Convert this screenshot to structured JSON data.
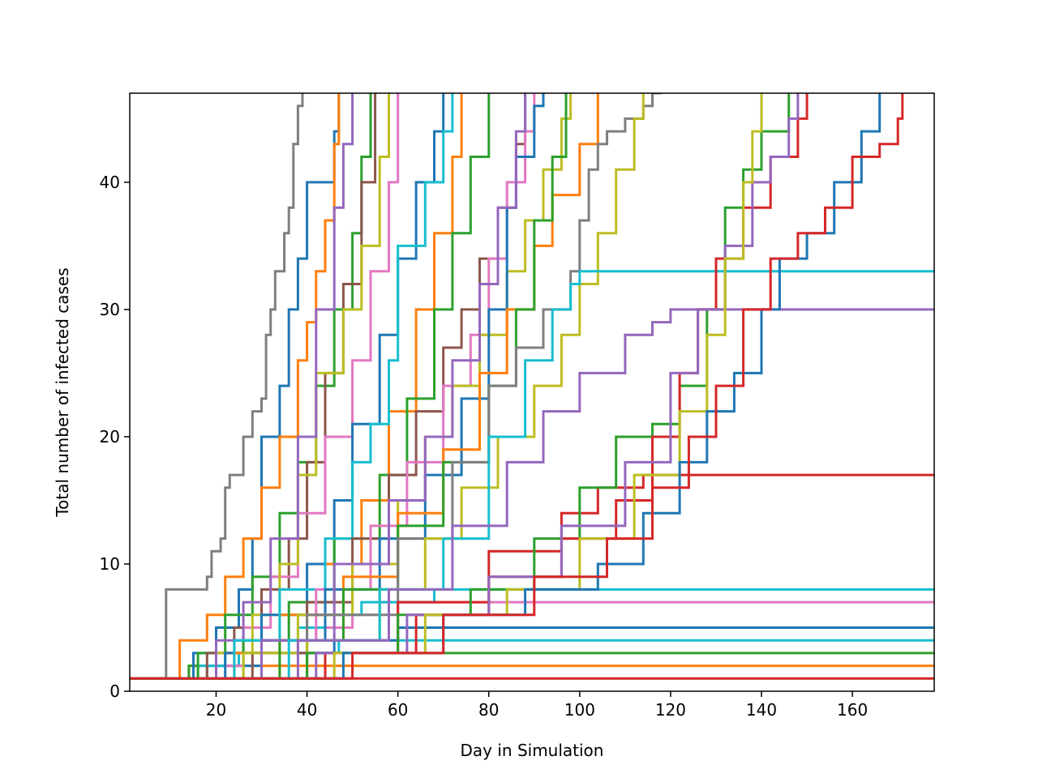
{
  "chart_data": {
    "type": "line",
    "title": "",
    "xlabel": "Day in Simulation",
    "ylabel": "Total number of infected cases",
    "xlim": [
      1,
      178
    ],
    "ylim": [
      0,
      47
    ],
    "xticks": [
      20,
      40,
      60,
      80,
      100,
      120,
      140,
      160
    ],
    "yticks": [
      0,
      10,
      20,
      30,
      40
    ],
    "grid": false,
    "legend": "none",
    "palette": [
      "#1f77b4",
      "#ff7f0e",
      "#2ca02c",
      "#d62728",
      "#9467bd",
      "#8c564b",
      "#e377c2",
      "#7f7f7f",
      "#bcbd22",
      "#17becf"
    ],
    "series": [
      {
        "color": "#d62728",
        "x": [
          1,
          178
        ],
        "y": [
          1,
          1
        ]
      },
      {
        "color": "#ff7f0e",
        "x": [
          1,
          12,
          14,
          178
        ],
        "y": [
          1,
          1,
          2,
          2
        ]
      },
      {
        "color": "#2ca02c",
        "x": [
          1,
          10,
          14,
          20,
          178
        ],
        "y": [
          1,
          1,
          2,
          3,
          3
        ]
      },
      {
        "color": "#17becf",
        "x": [
          1,
          12,
          18,
          25,
          47,
          178
        ],
        "y": [
          1,
          1,
          2,
          3,
          4,
          4
        ]
      },
      {
        "color": "#1f77b4",
        "x": [
          1,
          14,
          20,
          30,
          46,
          60,
          178
        ],
        "y": [
          1,
          1,
          2,
          3,
          4,
          5,
          5
        ]
      },
      {
        "color": "#e377c2",
        "x": [
          1,
          12,
          18,
          26,
          34,
          42,
          50,
          56,
          178
        ],
        "y": [
          1,
          1,
          2,
          3,
          4,
          5,
          6,
          7,
          7
        ]
      },
      {
        "color": "#17becf",
        "x": [
          1,
          10,
          16,
          22,
          30,
          38,
          44,
          52,
          60,
          68,
          178
        ],
        "y": [
          1,
          1,
          2,
          3,
          4,
          5,
          6,
          7,
          7,
          8,
          8
        ]
      },
      {
        "color": "#7f7f7f",
        "x": [
          1,
          8,
          9,
          16,
          18,
          19,
          21,
          22,
          23,
          24,
          26,
          28,
          30,
          31,
          32,
          33,
          34,
          35,
          36,
          37,
          38,
          39
        ],
        "y": [
          1,
          1,
          8,
          8,
          9,
          11,
          12,
          16,
          17,
          17,
          20,
          22,
          23,
          28,
          30,
          33,
          33,
          36,
          38,
          43,
          46,
          47
        ]
      },
      {
        "color": "#1f77b4",
        "x": [
          1,
          10,
          15,
          20,
          25,
          28,
          30,
          32,
          34,
          36,
          38,
          40,
          42,
          44,
          46,
          47
        ],
        "y": [
          1,
          1,
          3,
          5,
          8,
          12,
          20,
          20,
          24,
          30,
          34,
          40,
          40,
          40,
          44,
          47
        ]
      },
      {
        "color": "#ff7f0e",
        "x": [
          1,
          8,
          12,
          18,
          22,
          26,
          30,
          34,
          38,
          40,
          42,
          44,
          46,
          47
        ],
        "y": [
          1,
          1,
          4,
          6,
          9,
          12,
          16,
          20,
          26,
          29,
          33,
          37,
          43,
          47
        ]
      },
      {
        "color": "#2ca02c",
        "x": [
          1,
          10,
          16,
          22,
          28,
          34,
          38,
          42,
          46,
          50,
          52,
          54
        ],
        "y": [
          1,
          1,
          3,
          6,
          9,
          14,
          18,
          24,
          30,
          36,
          42,
          47
        ]
      },
      {
        "color": "#8c564b",
        "x": [
          1,
          12,
          18,
          24,
          30,
          36,
          40,
          44,
          48,
          52,
          55
        ],
        "y": [
          1,
          1,
          3,
          5,
          8,
          12,
          18,
          25,
          32,
          40,
          47
        ]
      },
      {
        "color": "#e377c2",
        "x": [
          1,
          14,
          20,
          26,
          32,
          38,
          44,
          50,
          54,
          58,
          60
        ],
        "y": [
          1,
          1,
          3,
          5,
          9,
          14,
          20,
          26,
          33,
          40,
          47
        ]
      },
      {
        "color": "#bcbd22",
        "x": [
          1,
          12,
          20,
          28,
          34,
          38,
          42,
          48,
          52,
          56,
          58
        ],
        "y": [
          1,
          1,
          3,
          6,
          10,
          17,
          25,
          30,
          35,
          42,
          47
        ]
      },
      {
        "color": "#9467bd",
        "x": [
          1,
          14,
          20,
          26,
          32,
          38,
          42,
          46,
          48,
          50
        ],
        "y": [
          1,
          1,
          4,
          7,
          12,
          20,
          30,
          38,
          43,
          47
        ]
      },
      {
        "color": "#1f77b4",
        "x": [
          1,
          12,
          22,
          30,
          40,
          46,
          50,
          56,
          60,
          64,
          68,
          70
        ],
        "y": [
          1,
          1,
          3,
          6,
          10,
          15,
          21,
          28,
          34,
          40,
          44,
          47
        ]
      },
      {
        "color": "#ff7f0e",
        "x": [
          1,
          12,
          24,
          34,
          44,
          52,
          58,
          64,
          68,
          72,
          74
        ],
        "y": [
          1,
          1,
          3,
          6,
          10,
          15,
          22,
          30,
          36,
          42,
          47
        ]
      },
      {
        "color": "#2ca02c",
        "x": [
          1,
          16,
          26,
          36,
          46,
          56,
          62,
          68,
          72,
          76,
          80
        ],
        "y": [
          1,
          1,
          4,
          7,
          12,
          17,
          23,
          30,
          36,
          42,
          47
        ]
      },
      {
        "color": "#17becf",
        "x": [
          1,
          14,
          24,
          34,
          44,
          50,
          54,
          58,
          60,
          64,
          66,
          70,
          72
        ],
        "y": [
          1,
          1,
          4,
          8,
          12,
          18,
          21,
          26,
          35,
          35,
          40,
          44,
          47
        ]
      },
      {
        "color": "#8c564b",
        "x": [
          1,
          16,
          28,
          40,
          50,
          58,
          64,
          70,
          74,
          78,
          82,
          86,
          88
        ],
        "y": [
          1,
          1,
          3,
          7,
          12,
          17,
          22,
          27,
          30,
          34,
          38,
          43,
          47
        ]
      },
      {
        "color": "#e377c2",
        "x": [
          1,
          18,
          30,
          42,
          54,
          62,
          70,
          76,
          80,
          84,
          88,
          90
        ],
        "y": [
          1,
          1,
          4,
          8,
          13,
          18,
          24,
          28,
          34,
          40,
          44,
          47
        ]
      },
      {
        "color": "#bcbd22",
        "x": [
          1,
          14,
          26,
          38,
          50,
          60,
          66,
          72,
          78,
          84,
          88,
          92,
          96,
          98
        ],
        "y": [
          1,
          1,
          3,
          6,
          10,
          15,
          20,
          24,
          28,
          33,
          37,
          41,
          45,
          47
        ]
      },
      {
        "color": "#1f77b4",
        "x": [
          1,
          18,
          30,
          44,
          56,
          66,
          74,
          80,
          84,
          86,
          90,
          92
        ],
        "y": [
          1,
          1,
          4,
          8,
          12,
          17,
          23,
          30,
          38,
          42,
          46,
          47
        ]
      },
      {
        "color": "#ff7f0e",
        "x": [
          1,
          20,
          34,
          48,
          60,
          70,
          78,
          84,
          90,
          94,
          100,
          104
        ],
        "y": [
          1,
          1,
          4,
          9,
          14,
          19,
          25,
          30,
          35,
          39,
          43,
          47
        ]
      },
      {
        "color": "#2ca02c",
        "x": [
          1,
          20,
          34,
          48,
          60,
          70,
          80,
          86,
          90,
          94,
          97
        ],
        "y": [
          1,
          1,
          4,
          8,
          13,
          18,
          24,
          30,
          37,
          42,
          47
        ]
      },
      {
        "color": "#9467bd",
        "x": [
          1,
          16,
          30,
          46,
          58,
          66,
          72,
          78,
          82,
          86,
          88
        ],
        "y": [
          1,
          1,
          4,
          10,
          15,
          20,
          26,
          32,
          38,
          44,
          47
        ]
      },
      {
        "color": "#7f7f7f",
        "x": [
          1,
          20,
          40,
          60,
          72,
          80,
          86,
          92,
          98,
          100,
          102,
          104,
          106,
          108,
          110,
          112,
          114,
          116,
          118
        ],
        "y": [
          1,
          1,
          6,
          12,
          18,
          24,
          27,
          30,
          33,
          37,
          41,
          43,
          44,
          44,
          45,
          45,
          46,
          47,
          47
        ]
      },
      {
        "color": "#bcbd22",
        "x": [
          1,
          22,
          40,
          56,
          66,
          74,
          82,
          90,
          96,
          100,
          104,
          108,
          112,
          114
        ],
        "y": [
          1,
          1,
          4,
          8,
          12,
          16,
          20,
          24,
          28,
          32,
          36,
          41,
          45,
          47
        ]
      },
      {
        "color": "#17becf",
        "x": [
          1,
          16,
          36,
          56,
          70,
          80,
          88,
          94,
          98,
          100,
          178
        ],
        "y": [
          1,
          1,
          4,
          8,
          12,
          20,
          26,
          30,
          32,
          33,
          33
        ]
      },
      {
        "color": "#9467bd",
        "x": [
          1,
          18,
          38,
          58,
          72,
          84,
          92,
          100,
          110,
          116,
          120,
          178
        ],
        "y": [
          1,
          1,
          4,
          8,
          13,
          18,
          22,
          25,
          28,
          29,
          30,
          30
        ]
      },
      {
        "color": "#d62728",
        "x": [
          1,
          20,
          40,
          60,
          80,
          96,
          104,
          110,
          114,
          116,
          178
        ],
        "y": [
          1,
          1,
          3,
          7,
          11,
          14,
          16,
          16,
          17,
          17,
          17
        ]
      },
      {
        "color": "#2ca02c",
        "x": [
          1,
          20,
          40,
          60,
          76,
          90,
          100,
          108,
          116,
          122,
          128,
          132,
          136,
          140,
          146
        ],
        "y": [
          1,
          1,
          3,
          6,
          8,
          12,
          16,
          20,
          21,
          24,
          30,
          38,
          41,
          44,
          47
        ]
      },
      {
        "color": "#d62728",
        "x": [
          1,
          24,
          44,
          64,
          80,
          96,
          108,
          116,
          122,
          126,
          130,
          136,
          142,
          148,
          150
        ],
        "y": [
          1,
          1,
          3,
          6,
          9,
          12,
          15,
          20,
          25,
          30,
          34,
          38,
          42,
          45,
          47
        ]
      },
      {
        "color": "#9467bd",
        "x": [
          1,
          22,
          42,
          62,
          80,
          96,
          110,
          120,
          126,
          132,
          138,
          142,
          146,
          148
        ],
        "y": [
          1,
          1,
          3,
          6,
          9,
          13,
          18,
          25,
          30,
          35,
          40,
          42,
          45,
          47
        ]
      },
      {
        "color": "#bcbd22",
        "x": [
          1,
          24,
          46,
          66,
          84,
          100,
          112,
          122,
          128,
          132,
          136,
          138,
          140
        ],
        "y": [
          1,
          1,
          3,
          6,
          8,
          12,
          17,
          22,
          28,
          34,
          40,
          44,
          47
        ]
      },
      {
        "color": "#1f77b4",
        "x": [
          1,
          26,
          48,
          70,
          88,
          104,
          114,
          122,
          128,
          134,
          140,
          144,
          150,
          156,
          162,
          166
        ],
        "y": [
          1,
          1,
          3,
          6,
          8,
          10,
          14,
          18,
          22,
          25,
          30,
          34,
          36,
          40,
          44,
          47
        ]
      },
      {
        "color": "#d62728",
        "x": [
          1,
          28,
          50,
          70,
          90,
          106,
          116,
          124,
          130,
          136,
          142,
          148,
          154,
          160,
          166,
          170,
          171
        ],
        "y": [
          1,
          1,
          3,
          6,
          9,
          12,
          16,
          20,
          24,
          30,
          34,
          36,
          38,
          42,
          43,
          45,
          47
        ]
      }
    ]
  }
}
